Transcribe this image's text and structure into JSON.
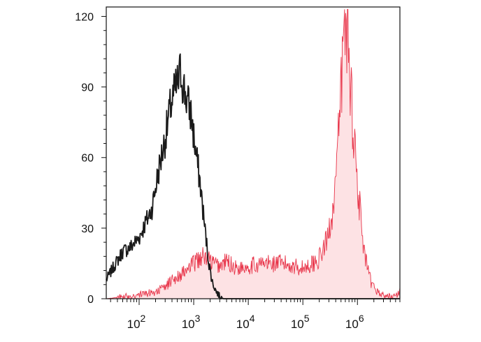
{
  "chart_data": {
    "type": "area",
    "x_scale": "log",
    "xlim": [
      25,
      6000000
    ],
    "ylim": [
      0,
      124
    ],
    "grid": false,
    "x_ticks": [
      {
        "value": 100,
        "base": "10",
        "exp": "2"
      },
      {
        "value": 1000,
        "base": "10",
        "exp": "3"
      },
      {
        "value": 10000,
        "base": "10",
        "exp": "4"
      },
      {
        "value": 100000,
        "base": "10",
        "exp": "5"
      },
      {
        "value": 1000000,
        "base": "10",
        "exp": "6"
      }
    ],
    "y_ticks": [
      {
        "value": 0,
        "label": "0"
      },
      {
        "value": 30,
        "label": "30"
      },
      {
        "value": 60,
        "label": "60"
      },
      {
        "value": 90,
        "label": "90"
      },
      {
        "value": 120,
        "label": "120"
      }
    ],
    "series": [
      {
        "style": "line",
        "color": "#1a1a1a",
        "x": [
          25,
          35,
          50,
          70,
          100,
          130,
          170,
          230,
          300,
          380,
          450,
          520,
          580,
          650,
          760,
          900,
          1050,
          1300,
          1600,
          1900,
          2200,
          2600,
          3000,
          3500,
          4500,
          10000,
          100000,
          6000000
        ],
        "y": [
          8,
          14,
          20,
          22,
          26,
          32,
          38,
          55,
          68,
          82,
          88,
          92,
          97,
          90,
          84,
          78,
          65,
          50,
          30,
          15,
          7,
          3,
          1,
          0,
          0,
          0,
          0,
          0
        ]
      },
      {
        "style": "filled",
        "color": "#e8354a",
        "fill": "#fde2e4",
        "x": [
          25,
          60,
          120,
          200,
          300,
          400,
          550,
          750,
          1000,
          1400,
          1800,
          2300,
          3000,
          4000,
          6000,
          10000,
          20000,
          40000,
          70000,
          100000,
          150000,
          200000,
          280000,
          350000,
          420000,
          480000,
          530000,
          580000,
          620000,
          680000,
          750000,
          850000,
          1000000,
          1300000,
          1800000,
          2600000,
          3500000,
          5000000,
          6000000
        ],
        "y": [
          0,
          1,
          2,
          3,
          5,
          8,
          10,
          12,
          15,
          18,
          17,
          15,
          14,
          16,
          13,
          14,
          15,
          15,
          14,
          13,
          15,
          17,
          25,
          38,
          55,
          80,
          100,
          112,
          119,
          110,
          90,
          72,
          50,
          20,
          6,
          2,
          1,
          1,
          3
        ]
      }
    ]
  }
}
